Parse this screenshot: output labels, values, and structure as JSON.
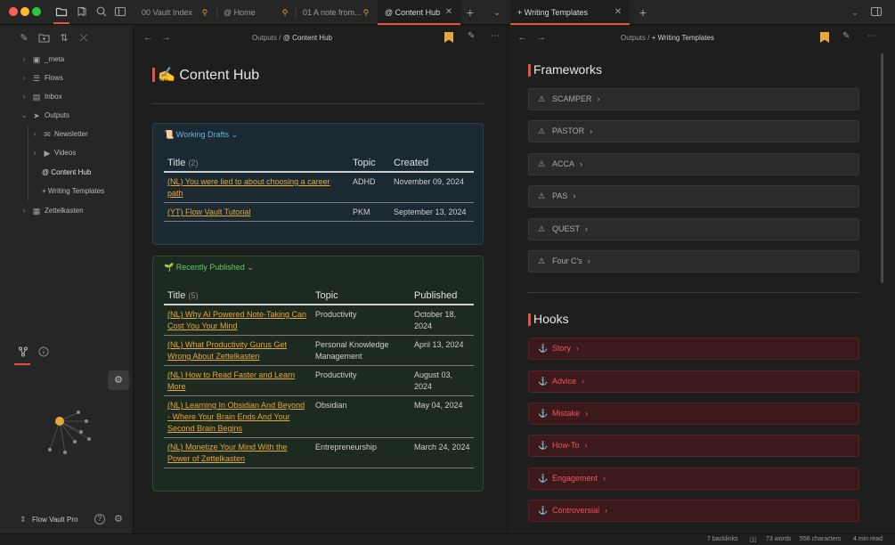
{
  "tabs": [
    {
      "label": "00 Vault Index",
      "pinned": true
    },
    {
      "label": "@ Home",
      "pinned": true
    },
    {
      "label": "01 A note from...",
      "pinned": true
    },
    {
      "label": "@ Content Hub",
      "active": true
    },
    {
      "label": "+ Writing Templates",
      "active": true
    }
  ],
  "sidebar": {
    "items": [
      {
        "label": "_meta",
        "icon": "image-icon"
      },
      {
        "label": "Flows",
        "icon": "list-icon"
      },
      {
        "label": "Inbox",
        "icon": "inbox-icon"
      },
      {
        "label": "Outputs",
        "icon": "send-icon"
      },
      {
        "label": "Newsletter",
        "icon": "mail-icon"
      },
      {
        "label": "Videos",
        "icon": "play-icon"
      },
      {
        "label": "@ Content Hub"
      },
      {
        "label": "+ Writing Templates"
      },
      {
        "label": "Zettelkasten",
        "icon": "calendar-icon"
      }
    ],
    "vault_name": "Flow Vault Pro"
  },
  "left_pane": {
    "breadcrumb_parent": "Outputs",
    "breadcrumb_sep": "/",
    "breadcrumb_current": "@ Content Hub",
    "title": "✍️ Content Hub",
    "drafts": {
      "title": "Working Drafts",
      "headers": {
        "title": "Title",
        "count": "(2)",
        "topic": "Topic",
        "created": "Created"
      },
      "rows": [
        {
          "title": "(NL) You were lied to about choosing a career path",
          "topic": "ADHD",
          "date": "November 09, 2024"
        },
        {
          "title": "(YT) Flow Vault Tutorial",
          "topic": "PKM",
          "date": "September 13, 2024"
        }
      ]
    },
    "published": {
      "title": "Recently Published",
      "headers": {
        "title": "Title",
        "count": "(5)",
        "topic": "Topic",
        "published": "Published"
      },
      "rows": [
        {
          "title": "(NL) Why AI Powered Note-Taking Can Cost You Your Mind",
          "topic": "Productivity",
          "date": "October 18, 2024"
        },
        {
          "title": "(NL) What Productivity Gurus Get Wrong About Zettelkasten",
          "topic": "Personal Knowledge Management",
          "date": "April 13, 2024"
        },
        {
          "title": "(NL) How to Read Faster and Learn More",
          "topic": "Productivity",
          "date": "August 03, 2024"
        },
        {
          "title": "(NL) Learning In Obsidian And Beyond - Where Your Brain Ends And Your Second Brain Begins",
          "topic": "Obsidian",
          "date": "May 04, 2024"
        },
        {
          "title": "(NL) Monetize Your Mind With the Power of Zettelkasten",
          "topic": "Entrepreneurship",
          "date": "March 24, 2024"
        }
      ]
    }
  },
  "right_pane": {
    "breadcrumb_parent": "Outputs",
    "breadcrumb_sep": "/",
    "breadcrumb_current": "+ Writing Templates",
    "frameworks_title": "Frameworks",
    "frameworks": [
      "SCAMPER",
      "PASTOR",
      "ACCA",
      "PAS",
      "QUEST",
      "Four C's"
    ],
    "hooks_title": "Hooks",
    "hooks": [
      "Story",
      "Advice",
      "Mistake",
      "How-To",
      "Engagement",
      "Controversial"
    ]
  },
  "status": {
    "backlinks": "7 backlinks",
    "words": "73 words",
    "characters": "556 characters",
    "read_time": "4 min read"
  },
  "colors": {
    "accent": "#e5533f",
    "link": "#e9a73a",
    "callout_blue": "#5fb3e6",
    "callout_green": "#5fcf67",
    "hook_red": "#f0535f"
  }
}
